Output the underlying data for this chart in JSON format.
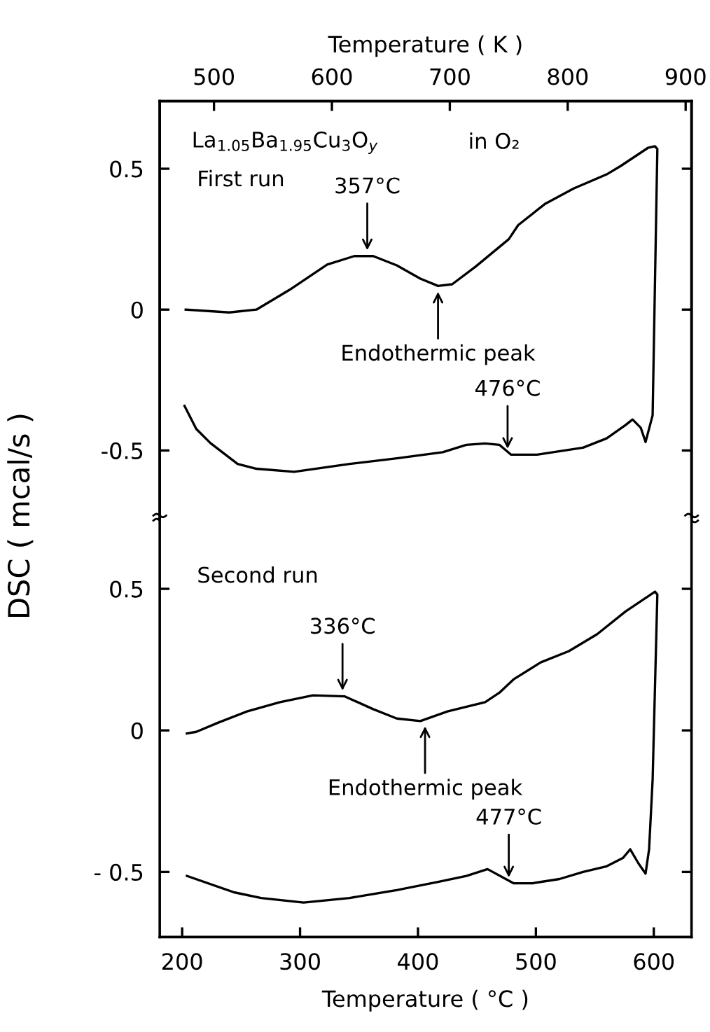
{
  "chart_data": [
    {
      "type": "line",
      "x2label": "Temperature ( K )",
      "ylabel": "DSC ( mcal/s )",
      "xlim": [
        181,
        632
      ],
      "x2lim": [
        454,
        905
      ],
      "x2ticks": [
        500,
        600,
        700,
        800,
        900
      ],
      "ylim": [
        -0.74,
        0.74
      ],
      "yticks": [
        0.5,
        0,
        -0.5
      ],
      "tick_labels": "y",
      "series": [
        {
          "color": "#000000",
          "x": [
            203,
            240,
            263,
            291,
            323,
            346,
            362,
            382,
            402,
            417,
            429,
            449,
            477,
            485,
            508,
            532,
            560,
            572,
            595,
            601,
            603,
            599,
            593,
            589,
            582,
            576,
            560,
            540,
            501,
            479,
            469,
            457,
            441,
            421,
            382,
            342,
            295,
            263,
            247,
            224,
            212,
            202
          ],
          "values": [
            0,
            -0.01,
            0,
            0.07,
            0.16,
            0.19,
            0.19,
            0.157,
            0.11,
            0.084,
            0.09,
            0.153,
            0.25,
            0.3,
            0.376,
            0.43,
            0.48,
            0.51,
            0.574,
            0.58,
            0.57,
            -0.375,
            -0.47,
            -0.42,
            -0.39,
            -0.41,
            -0.457,
            -0.49,
            -0.515,
            -0.515,
            -0.48,
            -0.475,
            -0.48,
            -0.506,
            -0.528,
            -0.548,
            -0.576,
            -0.565,
            -0.548,
            -0.474,
            -0.424,
            -0.342
          ]
        }
      ],
      "annotations": [
        "La$_{1.05}$Ba$_{1.95}$Cu$_{3}$O$_{y}$",
        "in O₂",
        "First run",
        {
          "text": "357°C",
          "x": 357,
          "y": 0.19
        },
        {
          "text": "Endothermic peak",
          "x": 417,
          "y": 0.084
        },
        {
          "text": "476°C",
          "x": 476,
          "y": -0.515
        }
      ]
    },
    {
      "type": "line",
      "xlabel": "Temperature ( °C )",
      "xlim": [
        181,
        632
      ],
      "xticks": [
        200,
        300,
        400,
        500,
        600
      ],
      "ylim": [
        -0.73,
        0.75
      ],
      "yticks": [
        0.5,
        0,
        {
          "value": -0.5,
          "label": "- 0.5"
        }
      ],
      "series": [
        {
          "color": "#000000",
          "x": [
            204,
            212,
            231,
            255,
            283,
            311,
            338,
            362,
            382,
            402,
            425,
            457,
            469,
            481,
            504,
            528,
            552,
            576,
            601,
            603,
            599,
            596,
            593,
            587,
            580,
            574,
            560,
            540,
            520,
            497,
            481,
            459,
            441,
            417,
            382,
            342,
            303,
            267,
            244,
            204
          ],
          "values": [
            -0.011,
            -0.005,
            0.028,
            0.067,
            0.1,
            0.124,
            0.12,
            0.075,
            0.042,
            0.033,
            0.067,
            0.1,
            0.133,
            0.18,
            0.24,
            0.28,
            0.34,
            0.42,
            0.49,
            0.48,
            -0.174,
            -0.42,
            -0.506,
            -0.47,
            -0.42,
            -0.45,
            -0.48,
            -0.5,
            -0.525,
            -0.54,
            -0.54,
            -0.49,
            -0.514,
            -0.535,
            -0.564,
            -0.592,
            -0.608,
            -0.592,
            -0.572,
            -0.514
          ]
        }
      ],
      "annotations": [
        "Second run",
        {
          "text": "336°C",
          "x": 336,
          "y": 0.12
        },
        {
          "text": "Endothermic peak",
          "x": 406,
          "y": 0.035
        },
        {
          "text": "477°C",
          "x": 477,
          "y": -0.54
        }
      ]
    }
  ]
}
